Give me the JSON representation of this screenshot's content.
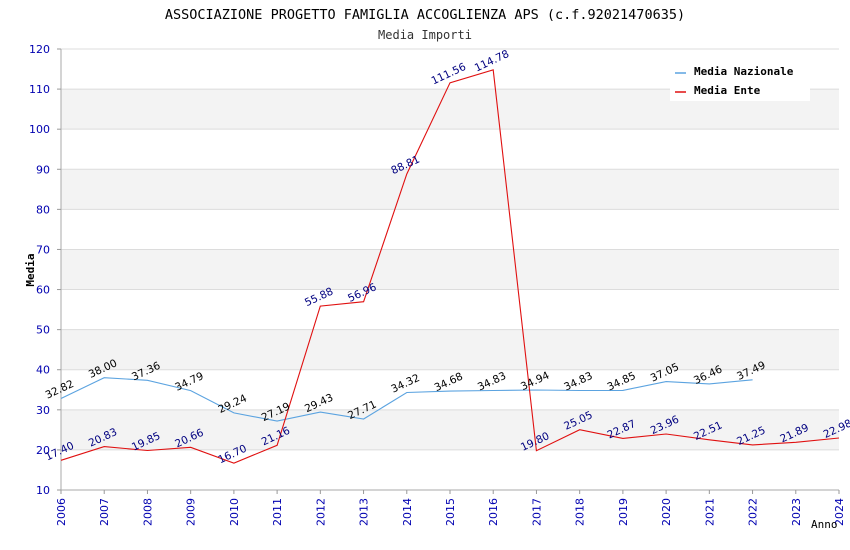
{
  "chart_data": {
    "type": "line",
    "title": "ASSOCIAZIONE PROGETTO FAMIGLIA ACCOGLIENZA APS (c.f.92021470635)",
    "subtitle": "Media Importi",
    "xlabel": "Anno",
    "ylabel": "Media",
    "ylim": [
      10,
      120
    ],
    "yticks": [
      10,
      20,
      30,
      40,
      50,
      60,
      70,
      80,
      90,
      100,
      110,
      120
    ],
    "categories": [
      "2006",
      "2007",
      "2008",
      "2009",
      "2010",
      "2011",
      "2012",
      "2013",
      "2014",
      "2015",
      "2016",
      "2017",
      "2018",
      "2019",
      "2020",
      "2021",
      "2022",
      "2023",
      "2024"
    ],
    "legend_position": "top-right",
    "series": [
      {
        "name": "Media Nazionale",
        "color": "#5ba3e0",
        "label_color": "#000000",
        "values": [
          32.82,
          38.0,
          37.36,
          34.79,
          29.24,
          27.19,
          29.43,
          27.71,
          34.32,
          34.68,
          34.83,
          34.94,
          34.83,
          34.85,
          37.05,
          36.46,
          37.49,
          null,
          null
        ],
        "labels": [
          "32.82",
          "38.00",
          "37.36",
          "34.79",
          "29.24",
          "27.19",
          "29.43",
          "27.71",
          "34.32",
          "34.68",
          "34.83",
          "34.94",
          "34.83",
          "34.85",
          "37.05",
          "36.46",
          "37.49",
          "",
          ""
        ]
      },
      {
        "name": "Media Ente",
        "color": "#e01010",
        "label_color": "#000080",
        "values": [
          17.4,
          20.83,
          19.85,
          20.66,
          16.7,
          21.16,
          55.88,
          56.96,
          88.81,
          111.56,
          114.78,
          19.8,
          25.05,
          22.87,
          23.96,
          22.51,
          21.25,
          21.89,
          22.98
        ],
        "labels": [
          "17.40",
          "20.83",
          "19.85",
          "20.66",
          "16.70",
          "21.16",
          "55.88",
          "56.96",
          "88.81",
          "111.56",
          "114.78",
          "19.80",
          "25.05",
          "22.87",
          "23.96",
          "22.51",
          "21.25",
          "21.89",
          "22.98"
        ]
      }
    ]
  }
}
